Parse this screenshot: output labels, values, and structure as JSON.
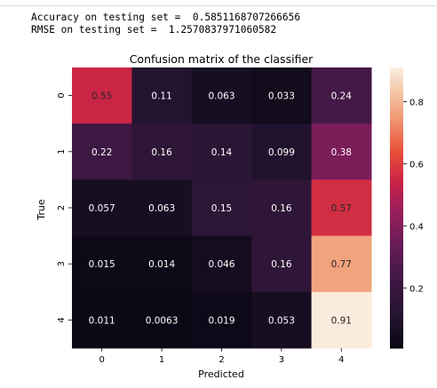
{
  "output": {
    "line1": "Accuracy on testing set =  0.5851168707266656",
    "line2": "RMSE on testing set =  1.2570837971060582"
  },
  "chart_data": {
    "type": "heatmap",
    "title": "Confusion matrix of the classifier",
    "xlabel": "Predicted",
    "ylabel": "True",
    "x_categories": [
      "0",
      "1",
      "2",
      "3",
      "4"
    ],
    "y_categories": [
      "0",
      "1",
      "2",
      "3",
      "4"
    ],
    "values": [
      [
        0.55,
        0.11,
        0.063,
        0.033,
        0.24
      ],
      [
        0.22,
        0.16,
        0.14,
        0.099,
        0.38
      ],
      [
        0.057,
        0.063,
        0.15,
        0.16,
        0.57
      ],
      [
        0.015,
        0.014,
        0.046,
        0.16,
        0.77
      ],
      [
        0.011,
        0.0063,
        0.019,
        0.053,
        0.91
      ]
    ],
    "cell_labels": [
      [
        "0.55",
        "0.11",
        "0.063",
        "0.033",
        "0.24"
      ],
      [
        "0.22",
        "0.16",
        "0.14",
        "0.099",
        "0.38"
      ],
      [
        "0.057",
        "0.063",
        "0.15",
        "0.16",
        "0.57"
      ],
      [
        "0.015",
        "0.014",
        "0.046",
        "0.16",
        "0.77"
      ],
      [
        "0.011",
        "0.0063",
        "0.019",
        "0.053",
        "0.91"
      ]
    ],
    "colormap": "rocket",
    "colorbar": {
      "range": [
        0.0063,
        0.91
      ],
      "ticks": [
        0.2,
        0.4,
        0.6,
        0.8
      ],
      "tick_labels": [
        "0.2",
        "0.4",
        "0.6",
        "0.8"
      ]
    }
  }
}
